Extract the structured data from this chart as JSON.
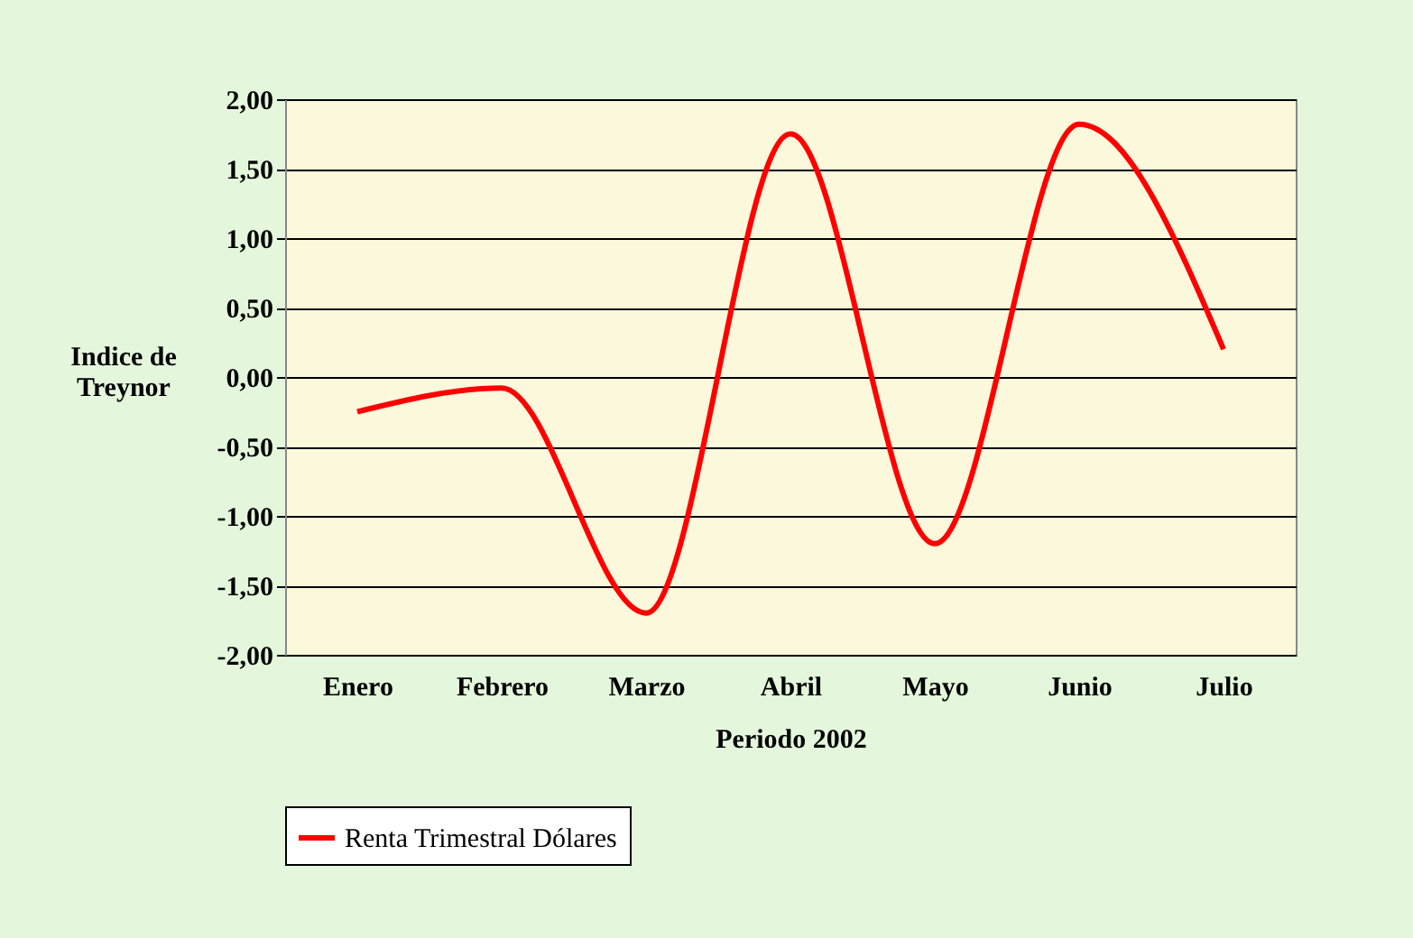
{
  "chart_data": {
    "type": "line",
    "xlabel": "Periodo 2002",
    "ylabel": "Indice de Treynor",
    "categories": [
      "Enero",
      "Febrero",
      "Marzo",
      "Abril",
      "Mayo",
      "Junio",
      "Julio"
    ],
    "series": [
      {
        "name": "Renta Trimestral Dólares",
        "color": "#ff0000",
        "values": [
          -0.25,
          -0.08,
          -1.7,
          1.75,
          -1.2,
          1.82,
          0.2
        ]
      }
    ],
    "ylim": [
      -2,
      2
    ],
    "yticks": [
      {
        "value": -2,
        "label": "-2,00"
      },
      {
        "value": -1.5,
        "label": "-1,50"
      },
      {
        "value": -1,
        "label": "-1,00"
      },
      {
        "value": -0.5,
        "label": "-0,50"
      },
      {
        "value": 0,
        "label": "0,00"
      },
      {
        "value": 0.5,
        "label": "0,50"
      },
      {
        "value": 1,
        "label": "1,00"
      },
      {
        "value": 1.5,
        "label": "1,50"
      },
      {
        "value": 2,
        "label": "2,00"
      }
    ],
    "grid": "y",
    "legend": "bottom",
    "marker": "none",
    "line_style": "solid"
  }
}
